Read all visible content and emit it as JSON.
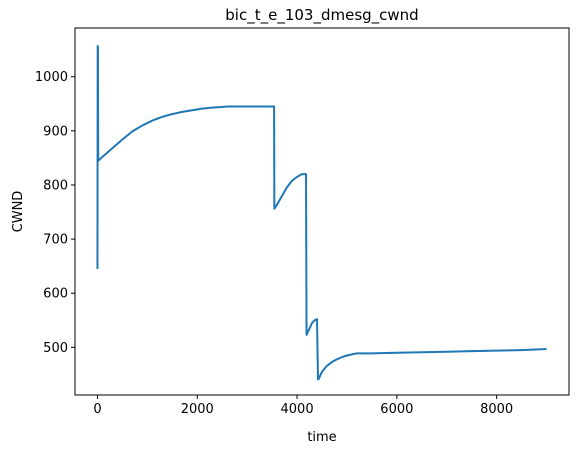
{
  "chart_data": {
    "type": "line",
    "title": "bic_t_e_103_dmesg_cwnd",
    "xlabel": "time",
    "ylabel": "CWND",
    "xlim": [
      -450,
      9450
    ],
    "ylim": [
      412,
      1090
    ],
    "xticks": [
      0,
      2000,
      4000,
      6000,
      8000
    ],
    "yticks": [
      500,
      600,
      700,
      800,
      900,
      1000
    ],
    "grid": false,
    "legend": "none",
    "series": [
      {
        "color": "#1f77b4",
        "x": [
          0,
          5,
          8,
          10,
          15,
          20,
          100,
          300,
          500,
          700,
          900,
          1100,
          1300,
          1500,
          1700,
          1900,
          2100,
          2300,
          2500,
          2600,
          2900,
          3200,
          3540,
          3545,
          3600,
          3700,
          3800,
          3900,
          4000,
          4100,
          4180,
          4190,
          4200,
          4250,
          4300,
          4350,
          4400,
          4420,
          4430,
          4500,
          4600,
          4700,
          4800,
          4900,
          5000,
          5100,
          5200,
          5500,
          6000,
          6500,
          7000,
          7500,
          8000,
          8500,
          9000
        ],
        "y": [
          645,
          1057,
          850,
          1055,
          848,
          845,
          852,
          868,
          884,
          899,
          910,
          919,
          926,
          931,
          935,
          938,
          941,
          943,
          944,
          945,
          945,
          945,
          945,
          756,
          764,
          780,
          796,
          808,
          815,
          820,
          820,
          523,
          525,
          535,
          545,
          550,
          552,
          441,
          441,
          455,
          466,
          473,
          478,
          482,
          485,
          487,
          489,
          489,
          490,
          491,
          492,
          493,
          494,
          495,
          497
        ]
      }
    ]
  }
}
